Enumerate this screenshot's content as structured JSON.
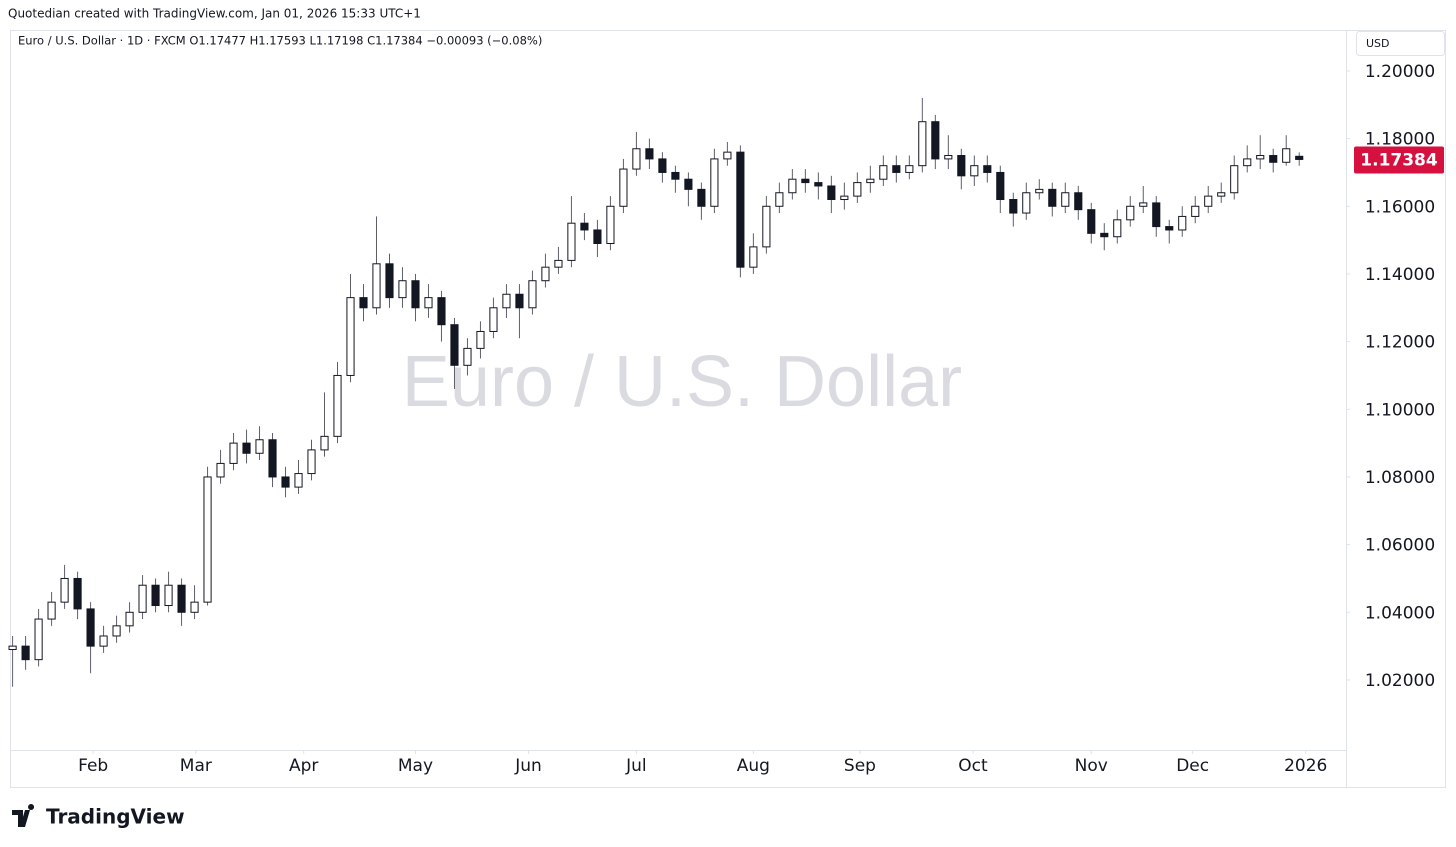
{
  "credit": "Quotedian created with TradingView.com, Jan 01, 2026 15:33 UTC+1",
  "brand": "TradingView",
  "chart_data": {
    "type": "candlestick",
    "title": "Euro / U.S. Dollar",
    "header": "Euro / U.S. Dollar · 1D · FXCM  O1.17477  H1.17593  L1.17198  C1.17384  −0.00093 (−0.08%)",
    "currency": "USD",
    "last_price": 1.17384,
    "last_price_color": "#d6113f",
    "up_color": "#ffffff",
    "down_color": "#131722",
    "wick_color": "#5d606b",
    "open": [
      1.029,
      1.03,
      1.026,
      1.038,
      1.043,
      1.05,
      1.041,
      1.03,
      1.033,
      1.036,
      1.04,
      1.048,
      1.042,
      1.048,
      1.04,
      1.043,
      1.08,
      1.084,
      1.09,
      1.087,
      1.091,
      1.08,
      1.077,
      1.081,
      1.088,
      1.092,
      1.11,
      1.133,
      1.13,
      1.143,
      1.133,
      1.138,
      1.13,
      1.133,
      1.125,
      1.113,
      1.118,
      1.123,
      1.13,
      1.134,
      1.13,
      1.138,
      1.142,
      1.144,
      1.155,
      1.153,
      1.149,
      1.16,
      1.171,
      1.177,
      1.174,
      1.17,
      1.168,
      1.165,
      1.16,
      1.174,
      1.176,
      1.142,
      1.148,
      1.16,
      1.164,
      1.168,
      1.167,
      1.166,
      1.162,
      1.163,
      1.167,
      1.168,
      1.172,
      1.17,
      1.172,
      1.185,
      1.174,
      1.175,
      1.169,
      1.172,
      1.17,
      1.162,
      1.158,
      1.164,
      1.165,
      1.16,
      1.164,
      1.159,
      1.152,
      1.151,
      1.156,
      1.16,
      1.161,
      1.154,
      1.153,
      1.157,
      1.16,
      1.163,
      1.164,
      1.172,
      1.174,
      1.175,
      1.173,
      1.17477
    ],
    "high": [
      1.033,
      1.033,
      1.041,
      1.046,
      1.054,
      1.052,
      1.043,
      1.036,
      1.039,
      1.043,
      1.051,
      1.05,
      1.052,
      1.05,
      1.048,
      1.083,
      1.088,
      1.093,
      1.094,
      1.095,
      1.093,
      1.083,
      1.085,
      1.091,
      1.105,
      1.114,
      1.14,
      1.137,
      1.157,
      1.146,
      1.142,
      1.14,
      1.137,
      1.135,
      1.127,
      1.121,
      1.126,
      1.133,
      1.137,
      1.137,
      1.141,
      1.146,
      1.148,
      1.163,
      1.158,
      1.156,
      1.163,
      1.174,
      1.182,
      1.18,
      1.176,
      1.172,
      1.17,
      1.167,
      1.177,
      1.179,
      1.178,
      1.152,
      1.163,
      1.167,
      1.171,
      1.171,
      1.17,
      1.169,
      1.167,
      1.17,
      1.172,
      1.175,
      1.175,
      1.175,
      1.192,
      1.187,
      1.181,
      1.177,
      1.175,
      1.175,
      1.172,
      1.164,
      1.167,
      1.168,
      1.167,
      1.167,
      1.166,
      1.161,
      1.155,
      1.159,
      1.163,
      1.166,
      1.163,
      1.156,
      1.16,
      1.163,
      1.166,
      1.167,
      1.175,
      1.178,
      1.181,
      1.177,
      1.181,
      1.17593
    ],
    "low": [
      1.018,
      1.023,
      1.024,
      1.036,
      1.041,
      1.038,
      1.022,
      1.028,
      1.031,
      1.034,
      1.038,
      1.04,
      1.04,
      1.036,
      1.038,
      1.042,
      1.078,
      1.082,
      1.084,
      1.085,
      1.077,
      1.074,
      1.075,
      1.079,
      1.086,
      1.09,
      1.108,
      1.126,
      1.128,
      1.13,
      1.13,
      1.126,
      1.127,
      1.12,
      1.106,
      1.11,
      1.115,
      1.121,
      1.127,
      1.121,
      1.128,
      1.136,
      1.14,
      1.142,
      1.15,
      1.145,
      1.147,
      1.158,
      1.169,
      1.171,
      1.167,
      1.164,
      1.16,
      1.156,
      1.158,
      1.172,
      1.139,
      1.14,
      1.146,
      1.158,
      1.162,
      1.164,
      1.162,
      1.158,
      1.159,
      1.161,
      1.164,
      1.166,
      1.167,
      1.168,
      1.17,
      1.171,
      1.171,
      1.165,
      1.166,
      1.167,
      1.158,
      1.154,
      1.156,
      1.162,
      1.157,
      1.158,
      1.156,
      1.149,
      1.147,
      1.149,
      1.154,
      1.158,
      1.151,
      1.149,
      1.151,
      1.155,
      1.158,
      1.161,
      1.162,
      1.17,
      1.171,
      1.17,
      1.172,
      1.17198
    ],
    "close": [
      1.03,
      1.026,
      1.038,
      1.043,
      1.05,
      1.041,
      1.03,
      1.033,
      1.036,
      1.04,
      1.048,
      1.042,
      1.048,
      1.04,
      1.043,
      1.08,
      1.084,
      1.09,
      1.087,
      1.091,
      1.08,
      1.077,
      1.081,
      1.088,
      1.092,
      1.11,
      1.133,
      1.13,
      1.143,
      1.133,
      1.138,
      1.13,
      1.133,
      1.125,
      1.113,
      1.118,
      1.123,
      1.13,
      1.134,
      1.13,
      1.138,
      1.142,
      1.144,
      1.155,
      1.153,
      1.149,
      1.16,
      1.171,
      1.177,
      1.174,
      1.17,
      1.168,
      1.165,
      1.16,
      1.174,
      1.176,
      1.142,
      1.148,
      1.16,
      1.164,
      1.168,
      1.167,
      1.166,
      1.162,
      1.163,
      1.167,
      1.168,
      1.172,
      1.17,
      1.172,
      1.185,
      1.174,
      1.175,
      1.169,
      1.172,
      1.17,
      1.162,
      1.158,
      1.164,
      1.165,
      1.16,
      1.164,
      1.159,
      1.152,
      1.151,
      1.156,
      1.16,
      1.161,
      1.154,
      1.153,
      1.157,
      1.16,
      1.163,
      1.164,
      1.172,
      1.174,
      1.175,
      1.173,
      1.177,
      1.17384
    ],
    "xlim": [
      -0.2,
      102.6
    ],
    "xticks": [
      {
        "value": 6.2,
        "label": "Feb"
      },
      {
        "value": 14.1,
        "label": "Mar"
      },
      {
        "value": 22.4,
        "label": "Apr"
      },
      {
        "value": 31.0,
        "label": "May"
      },
      {
        "value": 39.7,
        "label": "Jun"
      },
      {
        "value": 48.0,
        "label": "Jul"
      },
      {
        "value": 57.0,
        "label": "Aug"
      },
      {
        "value": 65.2,
        "label": "Sep"
      },
      {
        "value": 73.9,
        "label": "Oct"
      },
      {
        "value": 83.0,
        "label": "Nov"
      },
      {
        "value": 90.8,
        "label": "Dec"
      },
      {
        "value": 99.5,
        "label": "2026"
      }
    ],
    "ylim": [
      0.9993,
      1.2121
    ],
    "yticks": [
      {
        "value": 1.02,
        "label": "1.02000"
      },
      {
        "value": 1.04,
        "label": "1.04000"
      },
      {
        "value": 1.06,
        "label": "1.06000"
      },
      {
        "value": 1.08,
        "label": "1.08000"
      },
      {
        "value": 1.1,
        "label": "1.10000"
      },
      {
        "value": 1.12,
        "label": "1.12000"
      },
      {
        "value": 1.14,
        "label": "1.14000"
      },
      {
        "value": 1.16,
        "label": "1.16000"
      },
      {
        "value": 1.18,
        "label": "1.18000"
      },
      {
        "value": 1.2,
        "label": "1.20000"
      }
    ]
  }
}
